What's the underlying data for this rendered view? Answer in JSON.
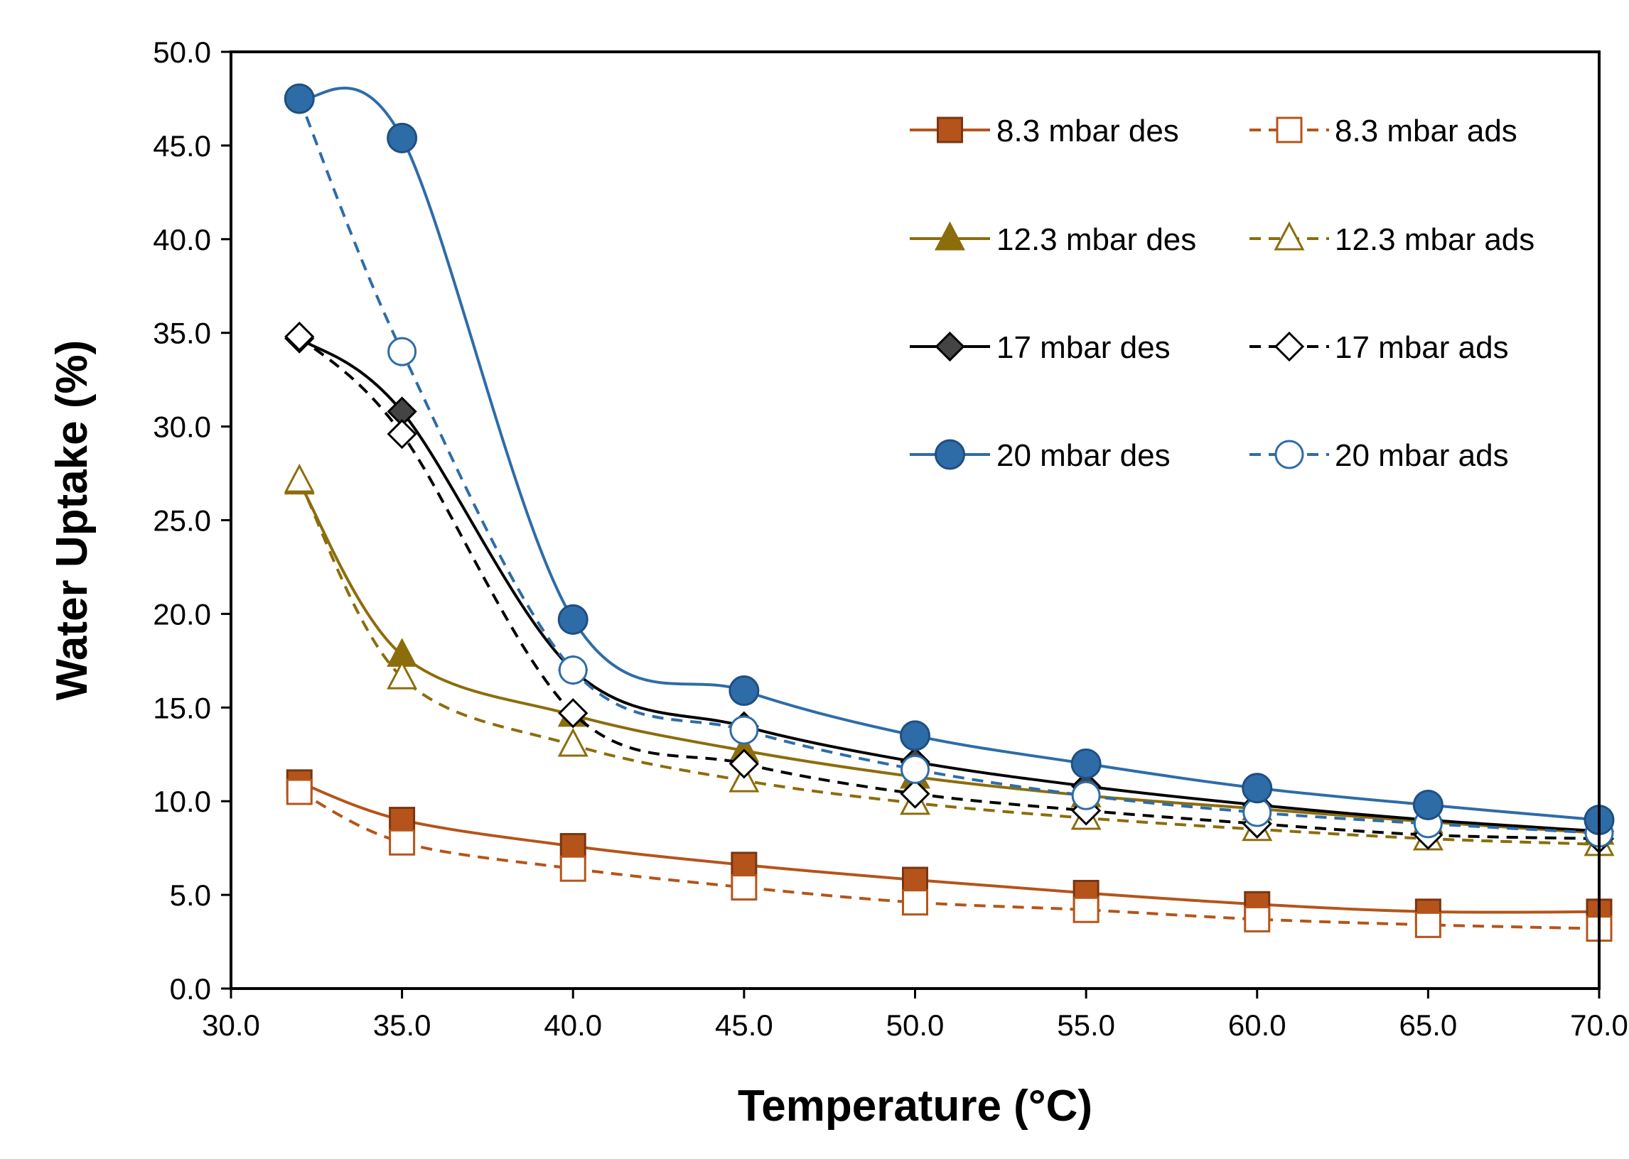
{
  "chart_data": {
    "type": "line",
    "title": "",
    "xlabel": "Temperature (°C)",
    "ylabel": "Water Uptake (%)",
    "xlim": [
      30,
      70
    ],
    "ylim": [
      0,
      50
    ],
    "xticks": [
      "30.0",
      "35.0",
      "40.0",
      "45.0",
      "50.0",
      "55.0",
      "60.0",
      "65.0",
      "70.0"
    ],
    "yticks": [
      "0.0",
      "5.0",
      "10.0",
      "15.0",
      "20.0",
      "25.0",
      "30.0",
      "35.0",
      "40.0",
      "45.0",
      "50.0"
    ],
    "grid": false,
    "legend_position": "top-right",
    "series": [
      {
        "name": "8.3 mbar des",
        "color": "#b5541a",
        "dash": false,
        "marker": "square",
        "filled": true,
        "x": [
          32.0,
          35.0,
          40.0,
          45.0,
          50.0,
          55.0,
          60.0,
          65.0,
          70.0
        ],
        "y": [
          11.0,
          9.0,
          7.6,
          6.6,
          5.8,
          5.1,
          4.5,
          4.1,
          4.1
        ]
      },
      {
        "name": "8.3 mbar ads",
        "color": "#b5541a",
        "dash": true,
        "marker": "square",
        "filled": false,
        "x": [
          32.0,
          35.0,
          40.0,
          45.0,
          50.0,
          55.0,
          60.0,
          65.0,
          70.0
        ],
        "y": [
          10.5,
          7.8,
          6.4,
          5.4,
          4.6,
          4.2,
          3.7,
          3.4,
          3.2
        ]
      },
      {
        "name": "12.3 mbar des",
        "color": "#8c6d0c",
        "dash": false,
        "marker": "triangle",
        "filled": true,
        "x": [
          32.0,
          35.0,
          40.0,
          45.0,
          50.0,
          55.0,
          60.0,
          65.0,
          70.0
        ],
        "y": [
          27.0,
          17.8,
          14.6,
          12.7,
          11.3,
          10.3,
          9.6,
          8.9,
          8.3
        ]
      },
      {
        "name": "12.3 mbar ads",
        "color": "#8c6d0c",
        "dash": true,
        "marker": "triangle",
        "filled": false,
        "x": [
          32.0,
          35.0,
          40.0,
          45.0,
          50.0,
          55.0,
          60.0,
          65.0,
          70.0
        ],
        "y": [
          27.1,
          16.6,
          13.0,
          11.1,
          9.9,
          9.1,
          8.5,
          8.0,
          7.7
        ]
      },
      {
        "name": "17 mbar des",
        "color": "#000000",
        "dash": false,
        "marker": "diamond",
        "filled": true,
        "x": [
          32.0,
          35.0,
          40.0,
          45.0,
          50.0,
          55.0,
          60.0,
          65.0,
          70.0
        ],
        "y": [
          34.7,
          30.8,
          17.0,
          14.0,
          12.1,
          10.8,
          9.8,
          9.0,
          8.4
        ]
      },
      {
        "name": "17 mbar ads",
        "color": "#000000",
        "dash": true,
        "marker": "diamond",
        "filled": false,
        "x": [
          32.0,
          35.0,
          40.0,
          45.0,
          50.0,
          55.0,
          60.0,
          65.0,
          70.0
        ],
        "y": [
          34.8,
          29.6,
          14.7,
          12.0,
          10.4,
          9.5,
          8.8,
          8.2,
          8.0
        ]
      },
      {
        "name": "20 mbar des",
        "color": "#2e6ca8",
        "dash": false,
        "marker": "circle",
        "filled": true,
        "x": [
          32.0,
          35.0,
          40.0,
          45.0,
          50.0,
          55.0,
          60.0,
          65.0,
          70.0
        ],
        "y": [
          47.5,
          45.4,
          19.7,
          15.9,
          13.5,
          12.0,
          10.7,
          9.8,
          9.0
        ]
      },
      {
        "name": "20 mbar ads",
        "color": "#2e6ca8",
        "dash": true,
        "marker": "circle",
        "filled": false,
        "x": [
          32.0,
          35.0,
          40.0,
          45.0,
          50.0,
          55.0,
          60.0,
          65.0,
          70.0
        ],
        "y": [
          47.5,
          34.0,
          17.0,
          13.8,
          11.7,
          10.3,
          9.4,
          8.8,
          8.3
        ]
      }
    ]
  }
}
